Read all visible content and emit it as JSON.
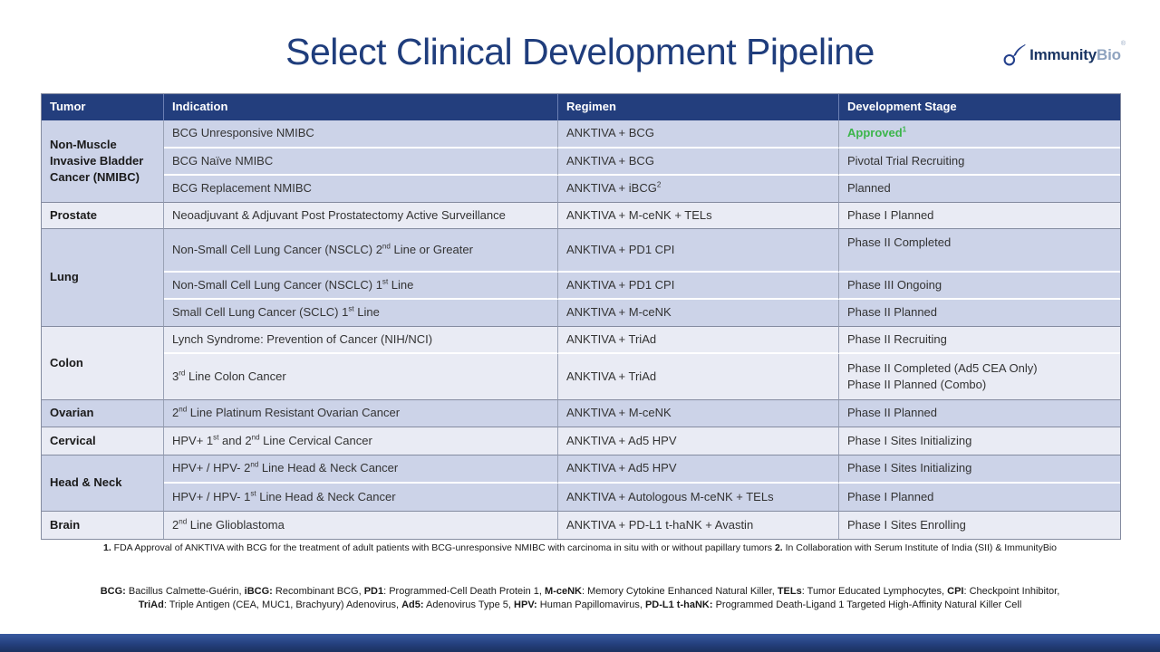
{
  "slide": {
    "title": "Select Clinical Development Pipeline",
    "logo": {
      "brand_primary": "Immunity",
      "brand_secondary": "Bio",
      "trademark": "®"
    }
  },
  "table": {
    "headers": [
      "Tumor",
      "Indication",
      "Regimen",
      "Development Stage"
    ],
    "groups": [
      {
        "tumor": "Non-Muscle Invasive Bladder Cancer (NMIBC)",
        "rows": [
          {
            "indication": "BCG Unresponsive NMIBC",
            "regimen": "ANKTIVA + BCG",
            "stage": "Approved^{1}"
          },
          {
            "indication": "BCG Naïve NMIBC",
            "regimen": "ANKTIVA + BCG",
            "stage": "Pivotal Trial Recruiting"
          },
          {
            "indication": "BCG Replacement NMIBC",
            "regimen": "ANKTIVA + iBCG^{2}",
            "stage": "Planned"
          }
        ]
      },
      {
        "tumor": "Prostate",
        "rows": [
          {
            "indication": "Neoadjuvant & Adjuvant Post Prostatectomy Active Surveillance",
            "regimen": "ANKTIVA + M-ceNK + TELs",
            "stage": "Phase I Planned"
          }
        ]
      },
      {
        "tumor": "Lung",
        "rows": [
          {
            "indication": "Non-Small Cell Lung Cancer (NSCLC) 2^{nd} Line or Greater",
            "regimen": "ANKTIVA + PD1 CPI",
            "stage": "Phase II Completed"
          },
          {
            "indication": "Non-Small Cell Lung Cancer (NSCLC) 1^{st} Line",
            "regimen": "ANKTIVA + PD1 CPI",
            "stage": "Phase III Ongoing"
          },
          {
            "indication": "Small Cell Lung Cancer (SCLC) 1^{st} Line",
            "regimen": "ANKTIVA + M-ceNK",
            "stage": "Phase II Planned"
          }
        ]
      },
      {
        "tumor": "Colon",
        "rows": [
          {
            "indication": "Lynch Syndrome: Prevention of Cancer (NIH/NCI)",
            "regimen": "ANKTIVA + TriAd",
            "stage": "Phase II Recruiting"
          },
          {
            "indication": "3^{rd} Line Colon Cancer",
            "regimen": "ANKTIVA + TriAd",
            "stage": "Phase II Completed (Ad5 CEA Only)\nPhase II Planned (Combo)"
          }
        ]
      },
      {
        "tumor": "Ovarian",
        "rows": [
          {
            "indication": "2^{nd} Line Platinum Resistant Ovarian Cancer",
            "regimen": "ANKTIVA + M-ceNK",
            "stage": "Phase II Planned"
          }
        ]
      },
      {
        "tumor": "Cervical",
        "rows": [
          {
            "indication": "HPV+ 1^{st} and 2^{nd} Line Cervical Cancer",
            "regimen": "ANKTIVA + Ad5 HPV",
            "stage": "Phase I Sites Initializing"
          }
        ]
      },
      {
        "tumor": "Head & Neck",
        "rows": [
          {
            "indication": "HPV+ / HPV- 2^{nd} Line Head & Neck Cancer",
            "regimen": "ANKTIVA + Ad5 HPV",
            "stage": "Phase I Sites Initializing"
          },
          {
            "indication": "HPV+ / HPV- 1^{st} Line Head & Neck Cancer",
            "regimen": "ANKTIVA + Autologous M-ceNK + TELs",
            "stage": "Phase I Planned"
          }
        ]
      },
      {
        "tumor": "Brain",
        "rows": [
          {
            "indication": "2^{nd} Line Glioblastoma",
            "regimen": "ANKTIVA + PD-L1 t-haNK + Avastin",
            "stage": "Phase I Sites Enrolling"
          }
        ]
      }
    ]
  },
  "footnotes": {
    "line1": "**1.** FDA Approval of ANKTIVA with BCG for the treatment of adult patients with BCG-unresponsive NMIBC with carcinoma in situ with or without papillary tumors  **2.** In Collaboration with Serum Institute of India (SII) & ImmunityBio",
    "abbrev_line1": "**BCG:** Bacillus Calmette-Guérin, **iBCG:** Recombinant BCG, **PD1**: Programmed-Cell Death Protein 1, **M-ceNK**: Memory Cytokine Enhanced Natural Killer, **TELs**: Tumor Educated Lymphocytes, **CPI**: Checkpoint Inhibitor,",
    "abbrev_line2": "**TriAd**: Triple Antigen (CEA, MUC1, Brachyury) Adenovirus, **Ad5:** Adenovirus Type 5, **HPV:** Human Papillomavirus, **PD-L1 t-haNK:** Programmed Death-Ligand 1 Targeted High-Affinity Natural Killer Cell"
  },
  "colors": {
    "title_blue": "#1F3D7C",
    "header_blue": "#233E7D",
    "row_lavender": "#CCD3E8",
    "row_light": "#E9EBF4",
    "approved_green": "#3BB54A",
    "footer_bar_blue": "#24407E",
    "logo_navy": "#1B3664",
    "logo_gray_blue": "#8FA3BF"
  }
}
